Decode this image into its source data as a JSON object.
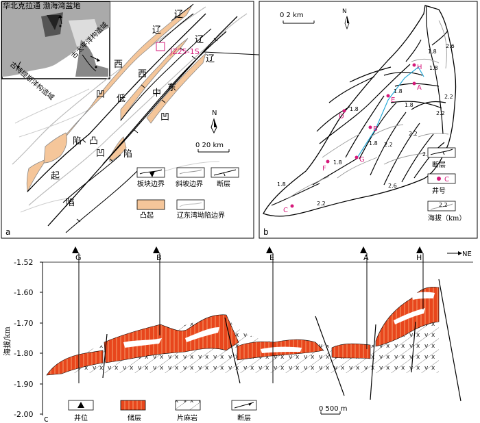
{
  "panel_a": {
    "label": "a",
    "inset": {
      "title": "华北克拉通 渤海湾盆地",
      "region_left": "古特提斯洋构造域",
      "region_right": "古太平洋构造域"
    },
    "basins": {
      "liao_top": "辽",
      "liao_left": "辽",
      "liao_right": "辽",
      "liao_far": "辽",
      "xi": "西",
      "xi2": "西",
      "ao": "凹",
      "di": "低",
      "zhong": "中",
      "dong": "东",
      "ao2": "凹",
      "xian": "陷",
      "tu": "凸",
      "ao3": "凹",
      "xian2": "陷",
      "qi": "起",
      "xian3": "陷"
    },
    "well_box": "JZ25-1S",
    "north": "N",
    "scale": "0      20 km",
    "legend": {
      "plate": "板块边界",
      "slope": "斜坡边界",
      "fault": "断层",
      "uplift": "凸起",
      "depression": "辽东湾坳陷边界"
    }
  },
  "panel_b": {
    "label": "b",
    "scale": "0      2 km",
    "north": "N",
    "wells": [
      "H",
      "A",
      "E",
      "B",
      "D",
      "F",
      "G",
      "C"
    ],
    "contours": [
      "1.8",
      "1.8",
      "2.6",
      "2.2",
      "2.2",
      "1.8",
      "1.8",
      "2.2",
      "1.8",
      "2.2",
      "2.2",
      "2.6",
      "1.8",
      "1.8",
      "2.2",
      "1.8"
    ],
    "legend": {
      "fault": "断层",
      "well": "井号",
      "well_marker": "C",
      "elev_value": "2.2",
      "elev": "海拔（km）"
    }
  },
  "panel_c": {
    "label": "c",
    "ylabel": "海拔/km",
    "yticks": [
      "-1.52",
      "-1.60",
      "-1.70",
      "-1.80",
      "-1.90",
      "-2.00"
    ],
    "wells": [
      "G",
      "B",
      "E",
      "A",
      "H"
    ],
    "direction": "NE",
    "scale": "0   500 m",
    "legend": {
      "well": "井位",
      "reservoir": "储层",
      "gneiss": "片麻岩",
      "fault": "断层"
    }
  },
  "colors": {
    "uplift": "#f5c69a",
    "reservoir": "#e8461c",
    "well_marker": "#d6197a",
    "trace": "#22a8d8"
  }
}
